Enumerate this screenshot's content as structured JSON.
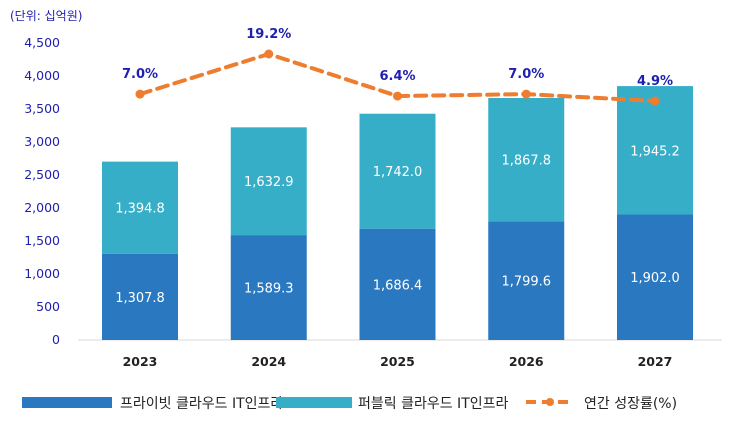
{
  "unit_label": "(단위: 십억원)",
  "chart_data": {
    "type": "bar",
    "stacked": true,
    "categories": [
      "2023",
      "2024",
      "2025",
      "2026",
      "2027"
    ],
    "series": [
      {
        "name": "프라이빗 클라우드 IT인프라",
        "color": "#2a78c0",
        "values": [
          1307.8,
          1589.3,
          1686.4,
          1799.6,
          1902.0
        ],
        "labels": [
          "1,307.8",
          "1,589.3",
          "1,686.4",
          "1,799.6",
          "1,902.0"
        ]
      },
      {
        "name": "퍼블릭 클라우드 IT인프라",
        "color": "#36aec8",
        "values": [
          1394.8,
          1632.9,
          1742.0,
          1867.8,
          1945.2
        ],
        "labels": [
          "1,394.8",
          "1,632.9",
          "1,742.0",
          "1,867.8",
          "1,945.2"
        ]
      }
    ],
    "line_series": {
      "name": "연간 성장률(%)",
      "color": "#ee7d2f",
      "values": [
        7.0,
        19.2,
        6.4,
        7.0,
        4.9
      ],
      "labels": [
        "7.0%",
        "19.2%",
        "6.4%",
        "7.0%",
        "4.9%"
      ]
    },
    "yticks": [
      "0",
      "500",
      "1,000",
      "1,500",
      "2,000",
      "2,500",
      "3,000",
      "3,500",
      "4,000",
      "4,500"
    ],
    "ylim": [
      0,
      4500
    ],
    "legend_position": "bottom"
  }
}
